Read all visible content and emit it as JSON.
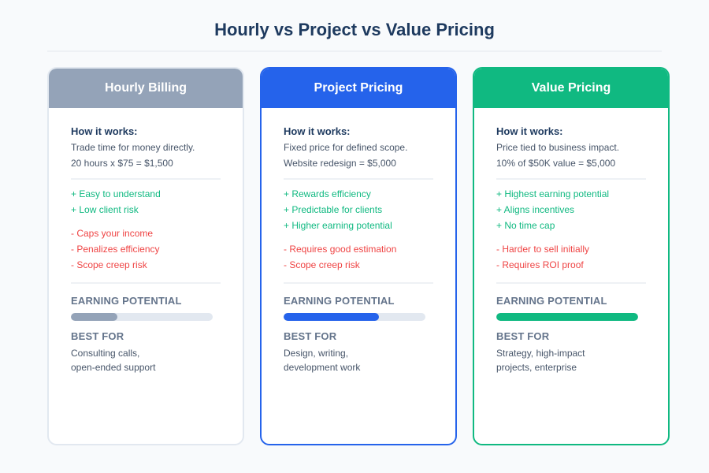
{
  "page": {
    "title": "Hourly vs Project vs Value Pricing"
  },
  "labels": {
    "how_it_works": "How it works:",
    "earning_potential": "EARNING POTENTIAL",
    "best_for": "BEST FOR"
  },
  "cards": [
    {
      "name": "Hourly Billing",
      "color": "#94a3b8",
      "border_color": "#e2e8f0",
      "how": [
        "Trade time for money directly.",
        "20 hours x $75 = $1,500"
      ],
      "pros": [
        "+ Easy to understand",
        "+ Low client risk"
      ],
      "cons": [
        "- Caps your income",
        "- Penalizes efficiency",
        "- Scope creep risk"
      ],
      "earning_potential_pct": 33,
      "best_for": [
        "Consulting calls,",
        "open-ended support"
      ]
    },
    {
      "name": "Project Pricing",
      "color": "#2563eb",
      "border_color": "#2563eb",
      "how": [
        "Fixed price for defined scope.",
        "Website redesign = $5,000"
      ],
      "pros": [
        "+ Rewards efficiency",
        "+ Predictable for clients",
        "+ Higher earning potential"
      ],
      "cons": [
        "- Requires good estimation",
        "- Scope creep risk"
      ],
      "earning_potential_pct": 67,
      "best_for": [
        "Design, writing,",
        "development work"
      ]
    },
    {
      "name": "Value Pricing",
      "color": "#10b981",
      "border_color": "#10b981",
      "how": [
        "Price tied to business impact.",
        "10% of $50K value = $5,000"
      ],
      "pros": [
        "+ Highest earning potential",
        "+ Aligns incentives",
        "+ No time cap"
      ],
      "cons": [
        "- Harder to sell initially",
        "- Requires ROI proof"
      ],
      "earning_potential_pct": 100,
      "best_for": [
        "Strategy, high-impact",
        "projects, enterprise"
      ]
    }
  ]
}
